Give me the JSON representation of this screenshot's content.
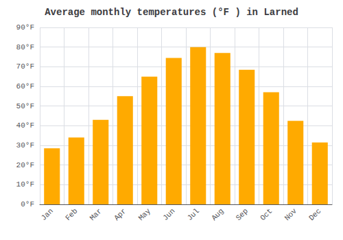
{
  "chart_data": {
    "type": "bar",
    "title": "Average monthly temperatures (°F ) in Larned",
    "categories": [
      "Jan",
      "Feb",
      "Mar",
      "Apr",
      "May",
      "Jun",
      "Jul",
      "Aug",
      "Sep",
      "Oct",
      "Nov",
      "Dec"
    ],
    "values": [
      28.5,
      34,
      43,
      55,
      65,
      74.5,
      80,
      77,
      68.5,
      57,
      42.5,
      31.5
    ],
    "color": "#FFAA00",
    "ylim": [
      0,
      90
    ],
    "yticks": [
      {
        "value": 0,
        "label": "0°F"
      },
      {
        "value": 10,
        "label": "10°F"
      },
      {
        "value": 20,
        "label": "20°F"
      },
      {
        "value": 30,
        "label": "30°F"
      },
      {
        "value": 40,
        "label": "40°F"
      },
      {
        "value": 50,
        "label": "50°F"
      },
      {
        "value": 60,
        "label": "60°F"
      },
      {
        "value": 70,
        "label": "70°F"
      },
      {
        "value": 80,
        "label": "80°F"
      },
      {
        "value": 90,
        "label": "90°F"
      }
    ],
    "grid": true
  }
}
